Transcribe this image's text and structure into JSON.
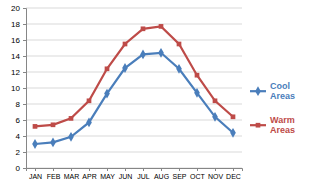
{
  "chart_data": {
    "type": "line",
    "categories": [
      "JAN",
      "FEB",
      "MAR",
      "APR",
      "MAY",
      "JUN",
      "JUL",
      "AUG",
      "SEP",
      "OCT",
      "NOV",
      "DEC"
    ],
    "series": [
      {
        "name": "Cool Areas",
        "color": "#4a7ebb",
        "marker": "diamond",
        "values": [
          3,
          3.2,
          3.9,
          5.7,
          9.3,
          12.5,
          14.2,
          14.4,
          12.4,
          9.4,
          6.4,
          4.4
        ]
      },
      {
        "name": "Warm Areas",
        "color": "#be4b48",
        "marker": "square",
        "values": [
          5.2,
          5.4,
          6.2,
          8.4,
          12.4,
          15.5,
          17.4,
          17.7,
          15.5,
          11.6,
          8.4,
          6.4
        ]
      }
    ],
    "ylim": [
      0,
      20
    ],
    "yticks": [
      0,
      2,
      4,
      6,
      8,
      10,
      12,
      14,
      16,
      18,
      20
    ],
    "grid": true,
    "legend": "right"
  }
}
